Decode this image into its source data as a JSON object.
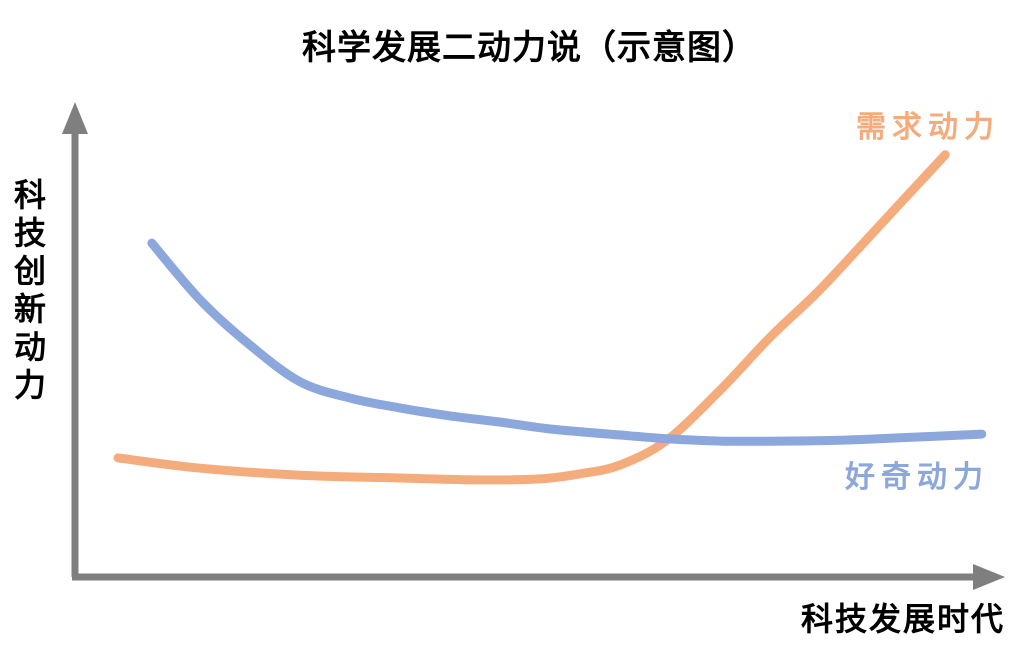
{
  "chart_data": {
    "type": "line",
    "title": "科学发展二动力说（示意图）",
    "xlabel": "科技发展时代",
    "ylabel": "科技创新动力",
    "xlim": [
      0,
      100
    ],
    "ylim": [
      0,
      100
    ],
    "grid": false,
    "ticks": "none (schematic axes drawn as gray arrows, no tick labels)",
    "legend_position": "inline colored labels near right ends of curves",
    "axis_color": "#7F7F7F",
    "text_color": "#000000",
    "series": [
      {
        "name": "需求动力",
        "color": "#F4AC7D",
        "x": [
          4.7,
          13.7,
          24.6,
          35.5,
          44.3,
          50.8,
          55.2,
          59.6,
          64.7,
          70.5,
          76.0,
          81.4,
          88.0,
          95.1
        ],
        "y": [
          25.5,
          23.3,
          21.8,
          21.2,
          20.8,
          21.0,
          22.1,
          24.0,
          29.3,
          40.0,
          51.4,
          61.5,
          75.4,
          90.4
        ]
      },
      {
        "name": "好奇动力",
        "color": "#8CA7DB",
        "x": [
          8.4,
          13.7,
          19.1,
          24.6,
          30.1,
          35.5,
          41.0,
          46.4,
          51.9,
          59.6,
          64.8,
          70.5,
          77.0,
          83.6,
          90.2,
          99.1
        ],
        "y": [
          71.5,
          59.3,
          49.7,
          41.8,
          38.3,
          36.2,
          34.5,
          33.2,
          31.7,
          30.4,
          29.6,
          29.1,
          29.1,
          29.3,
          29.8,
          30.6
        ]
      }
    ]
  }
}
